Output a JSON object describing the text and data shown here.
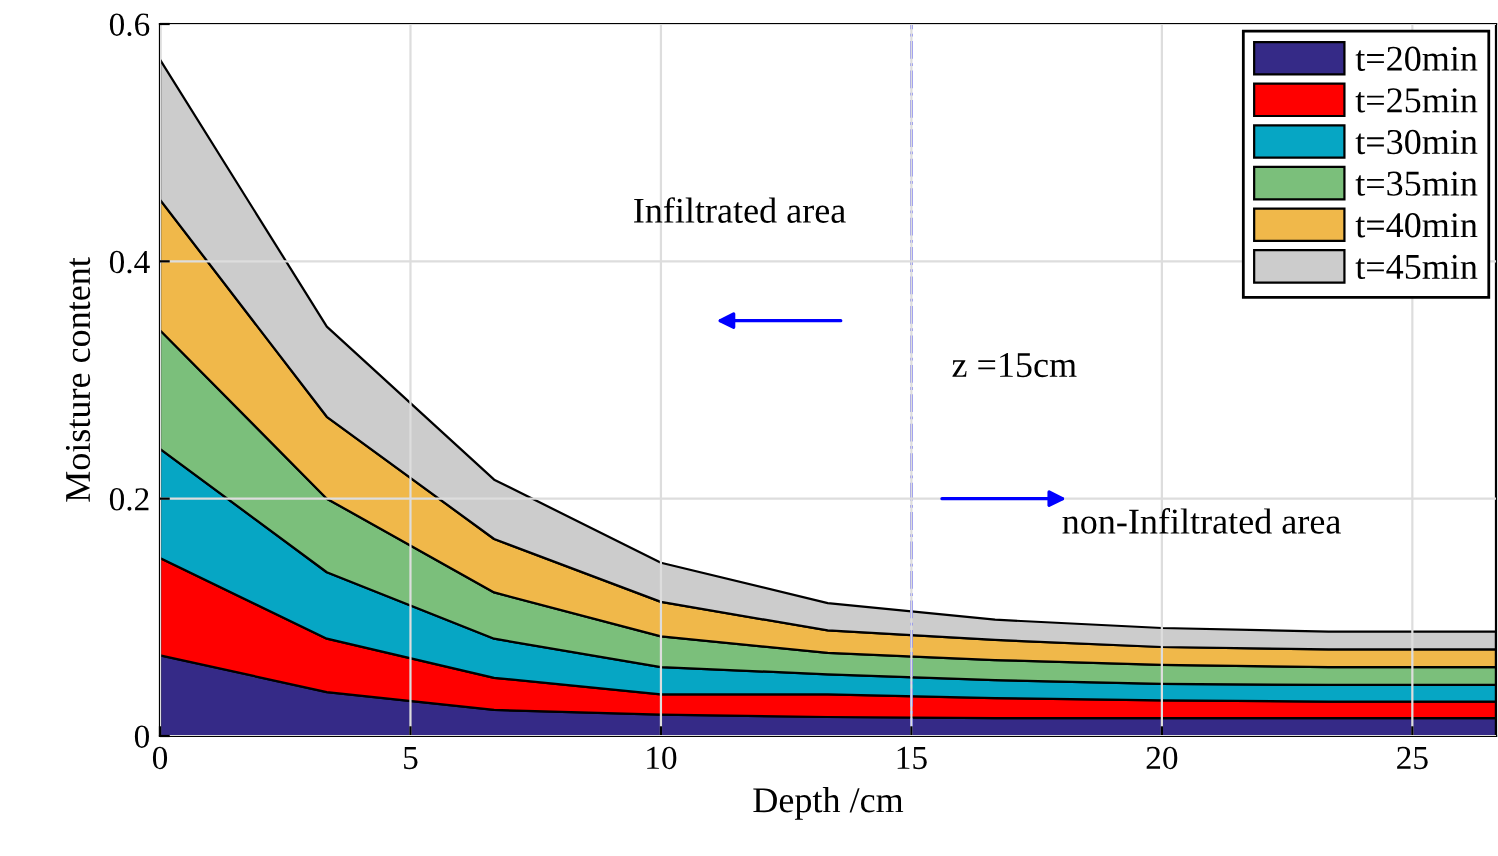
{
  "chart_data": {
    "type": "area",
    "stacked": true,
    "xlabel": "Depth /cm",
    "ylabel": "Moisture content",
    "x": [
      0,
      3.33,
      6.67,
      10,
      13.33,
      16.67,
      20,
      23.33,
      26.67
    ],
    "series": [
      {
        "name": "t=20min",
        "color": "#352a87",
        "values": [
          0.068,
          0.037,
          0.022,
          0.018,
          0.016,
          0.015,
          0.015,
          0.015,
          0.015
        ]
      },
      {
        "name": "t=25min",
        "color": "#ff0000",
        "values": [
          0.082,
          0.045,
          0.027,
          0.017,
          0.019,
          0.017,
          0.015,
          0.014,
          0.014
        ]
      },
      {
        "name": "t=30min",
        "color": "#06a6c4",
        "values": [
          0.092,
          0.056,
          0.033,
          0.023,
          0.017,
          0.015,
          0.014,
          0.014,
          0.014
        ]
      },
      {
        "name": "t=35min",
        "color": "#7bbf7b",
        "values": [
          0.1,
          0.062,
          0.039,
          0.026,
          0.018,
          0.017,
          0.016,
          0.015,
          0.015
        ]
      },
      {
        "name": "t=40min",
        "color": "#f0b84a",
        "values": [
          0.11,
          0.069,
          0.045,
          0.029,
          0.019,
          0.017,
          0.015,
          0.015,
          0.015
        ]
      },
      {
        "name": "t=45min",
        "color": "#cccccc",
        "values": [
          0.118,
          0.076,
          0.05,
          0.033,
          0.023,
          0.017,
          0.016,
          0.015,
          0.015
        ]
      }
    ],
    "xlim": [
      0,
      26.67
    ],
    "xticks": [
      0,
      5,
      10,
      15,
      20,
      25
    ],
    "ylim": [
      0,
      0.6
    ],
    "yticks": [
      0,
      0.2,
      0.4,
      0.6
    ],
    "ref_lines": [
      {
        "axis": "x",
        "value": 15,
        "label": "z =15cm",
        "color": "#4040ff",
        "line_style": "dashdot"
      }
    ],
    "annotations": [
      "Infiltrated area",
      "non-Infiltrated area"
    ],
    "grid": true,
    "legend": "top right"
  }
}
